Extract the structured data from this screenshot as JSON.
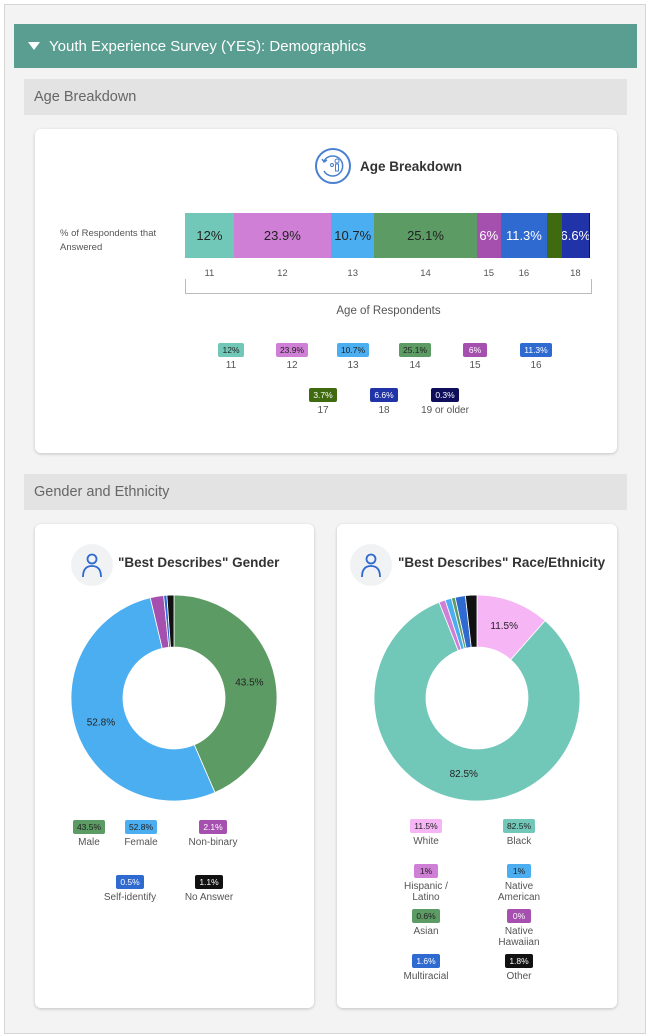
{
  "header": {
    "title": "Youth Experience Survey (YES): Demographics"
  },
  "sections": {
    "age": "Age Breakdown",
    "gender_ethnicity": "Gender and Ethnicity"
  },
  "chart_data": [
    {
      "type": "bar",
      "title": "Age Breakdown",
      "orientation": "horizontal-stacked",
      "ylabel": "% of Respondents that Answered",
      "xlabel": "Age of Respondents",
      "categories": [
        "11",
        "12",
        "13",
        "14",
        "15",
        "16",
        "17",
        "18",
        "19 or older"
      ],
      "values": [
        12,
        23.9,
        10.7,
        25.1,
        6,
        11.3,
        3.7,
        6.6,
        0.3
      ],
      "labels": [
        "12%",
        "23.9%",
        "10.7%",
        "25.1%",
        "6%",
        "11.3%",
        "3.7%",
        "6.6%",
        "0.3%"
      ],
      "colors": [
        "#72c8b8",
        "#cf7fd5",
        "#4aaef0",
        "#5c9b63",
        "#a54fae",
        "#2f6ad0",
        "#3f6a10",
        "#2133a8",
        "#0e0e5a"
      ],
      "text_colors": [
        "#222",
        "#222",
        "#222",
        "#222",
        "#fff",
        "#fff",
        "#fff",
        "#fff",
        "#fff"
      ],
      "axis_ticks": [
        "11",
        "12",
        "13",
        "14",
        "15",
        "16",
        "",
        "18",
        ""
      ]
    },
    {
      "type": "pie",
      "title": "\"Best Describes\" Gender",
      "categories": [
        "Male",
        "Female",
        "Non-binary",
        "Self-identify",
        "No Answer"
      ],
      "values": [
        43.5,
        52.8,
        2.1,
        0.5,
        1.1
      ],
      "labels": [
        "43.5%",
        "52.8%",
        "2.1%",
        "0.5%",
        "1.1%"
      ],
      "colors": [
        "#5c9b63",
        "#4aaef0",
        "#a54fae",
        "#2f6ad0",
        "#111111"
      ],
      "text_colors": [
        "#222",
        "#222",
        "#fff",
        "#fff",
        "#fff"
      ],
      "slice_labels": [
        "43.5%",
        "52.8%",
        "",
        "",
        ""
      ]
    },
    {
      "type": "pie",
      "title": "\"Best Describes\" Race/Ethnicity",
      "categories": [
        "White",
        "Black",
        "Hispanic / Latino",
        "Native American",
        "Asian",
        "Native Hawaiian",
        "Multiracial",
        "Other"
      ],
      "values": [
        11.5,
        82.5,
        1,
        1,
        0.6,
        0,
        1.6,
        1.8
      ],
      "labels": [
        "11.5%",
        "82.5%",
        "1%",
        "1%",
        "0.6%",
        "0%",
        "1.6%",
        "1.8%"
      ],
      "colors": [
        "#f6b6f6",
        "#72c8b8",
        "#cf7fd5",
        "#4aaef0",
        "#5c9b63",
        "#a54fae",
        "#2f6ad0",
        "#111111"
      ],
      "text_colors": [
        "#222",
        "#222",
        "#222",
        "#222",
        "#222",
        "#fff",
        "#fff",
        "#fff"
      ],
      "slice_labels": [
        "11.5%",
        "82.5%",
        "",
        "",
        "",
        "",
        "",
        ""
      ]
    }
  ]
}
